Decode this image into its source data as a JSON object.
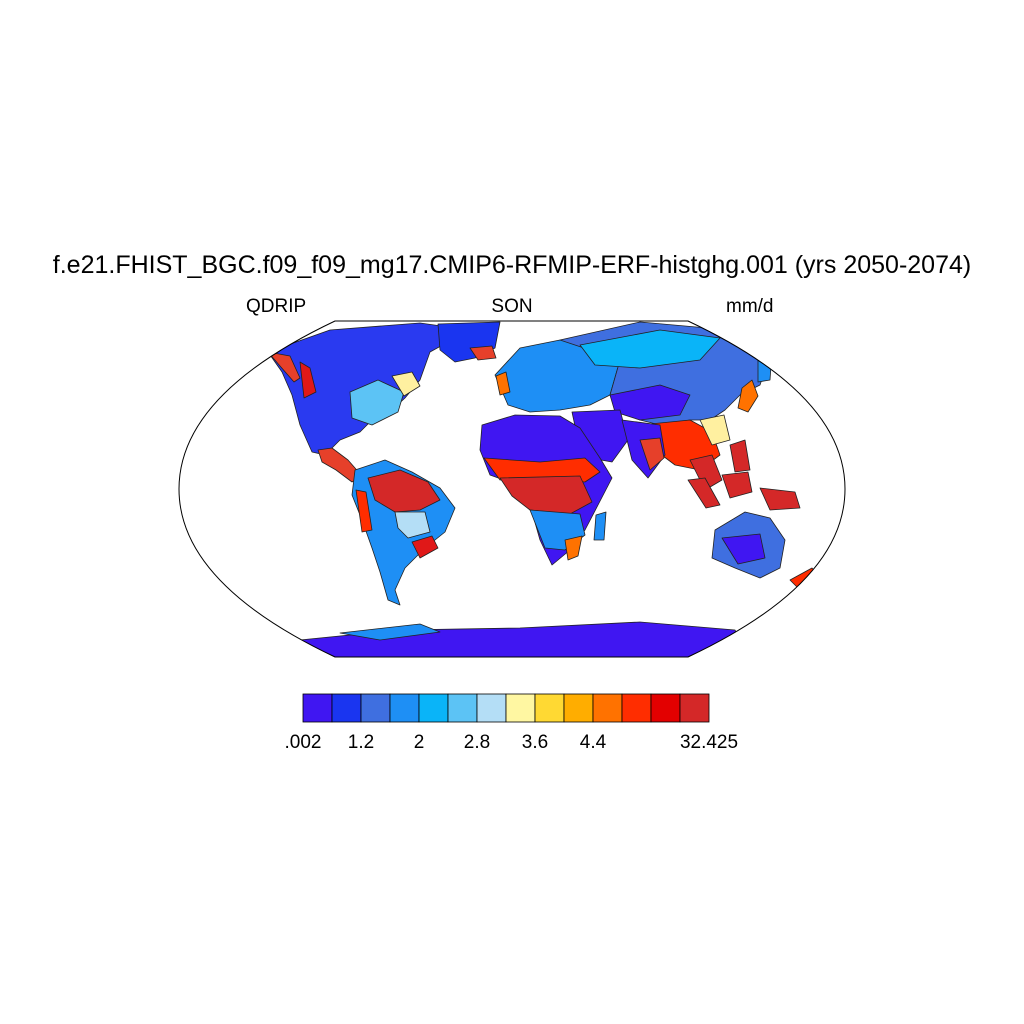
{
  "title": "f.e21.FHIST_BGC.f09_f09_mg17.CMIP6-RFMIP-ERF-histghg.001 (yrs 2050-2074)",
  "subtitle_left": "QDRIP",
  "subtitle_center": "SON",
  "subtitle_right": "mm/d",
  "colorbar": {
    "colors": [
      "#4016f2",
      "#1a35f0",
      "#3f6fe0",
      "#1e8ff5",
      "#0ab4f8",
      "#5cc3f5",
      "#b4def6",
      "#fff7a2",
      "#ffd933",
      "#ffad00",
      "#ff7200",
      "#ff2d00",
      "#e30000",
      "#d42828"
    ],
    "labels": [
      {
        "text": ".002",
        "index": 0
      },
      {
        "text": "1.2",
        "index": 2
      },
      {
        "text": "2",
        "index": 4
      },
      {
        "text": "2.8",
        "index": 6
      },
      {
        "text": "3.6",
        "index": 8
      },
      {
        "text": "4.4",
        "index": 10
      },
      {
        "text": "32.425",
        "index": 14
      }
    ]
  }
}
